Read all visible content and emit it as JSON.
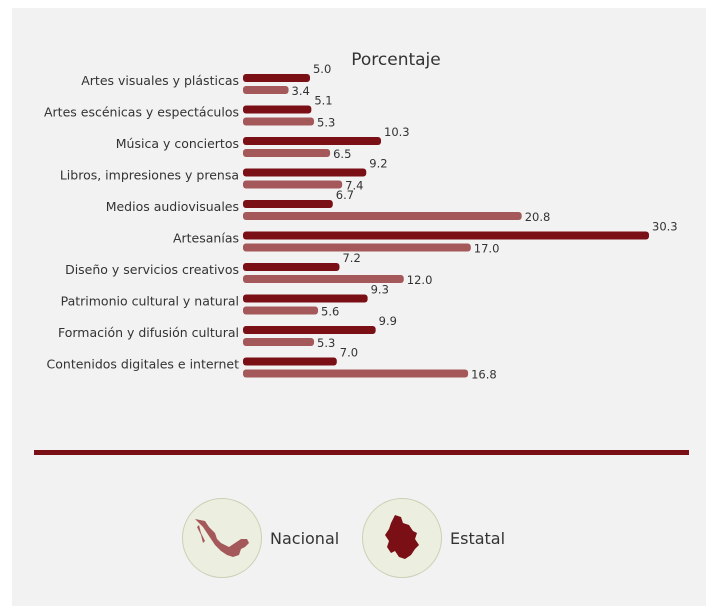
{
  "colors": {
    "nacional": "#7a0f15",
    "estatal": "#a5585a",
    "divider": "#7a0f15",
    "map_nacional": "#a5585a",
    "map_estatal": "#7a0f15"
  },
  "chart_data": {
    "type": "bar",
    "orientation": "horizontal",
    "title": "Porcentaje",
    "categories": [
      "Artes visuales y plásticas",
      "Artes escénicas y espectáculos",
      "Música y conciertos",
      "Libros, impresiones y prensa",
      "Medios audiovisuales",
      "Artesanías",
      "Diseño y servicios creativos",
      "Patrimonio cultural y natural",
      "Formación y difusión cultural",
      "Contenidos digitales e internet"
    ],
    "series": [
      {
        "name": "Nacional",
        "values": [
          5.0,
          5.1,
          10.3,
          9.2,
          6.7,
          30.3,
          7.2,
          9.3,
          9.9,
          7.0
        ],
        "labels": [
          "5.0",
          "5.1",
          "10.3",
          "9.2",
          "6.7",
          "30.3",
          "7.2",
          "9.3",
          "9.9",
          "7.0"
        ]
      },
      {
        "name": "Estatal",
        "values": [
          3.4,
          5.3,
          6.5,
          7.4,
          20.8,
          17.0,
          12.0,
          5.6,
          5.3,
          16.8
        ],
        "labels": [
          "3.4",
          "5.3",
          "6.5",
          "7.4",
          "20.8",
          "17.0",
          "12.0",
          "5.6",
          "5.3",
          "16.8"
        ]
      }
    ],
    "xlim": [
      0,
      30.3
    ],
    "grid": false,
    "legend_position": "bottom"
  },
  "legend": {
    "nacional_label": "Nacional",
    "estatal_label": "Estatal",
    "nacional_icon": "mexico-map-icon",
    "estatal_icon": "state-map-icon"
  }
}
